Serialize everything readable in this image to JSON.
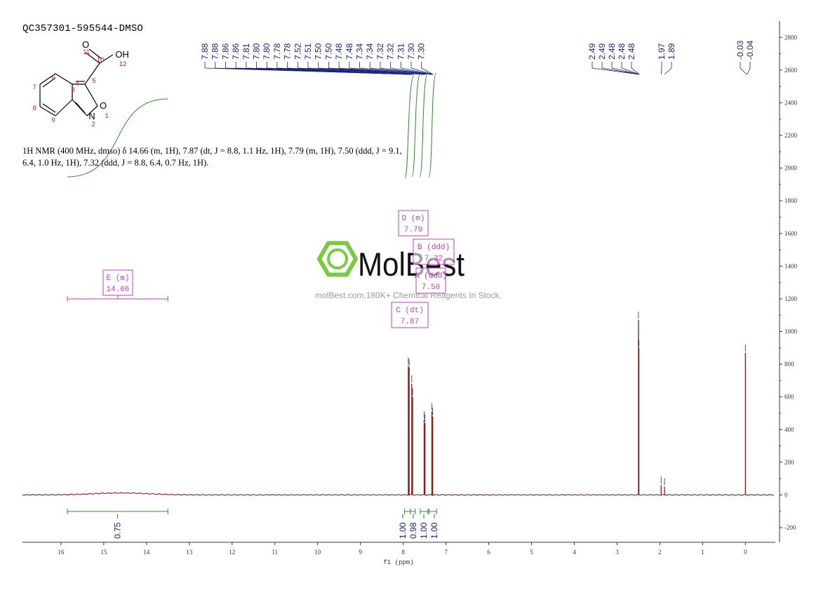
{
  "sample_id": "QC357301-595544-DMSO",
  "hnmr_text": "1H NMR (400 MHz, dmso) δ 14.66 (m, 1H), 7.87 (dt, J = 8.8, 1.1 Hz, 1H), 7.79 (m, 1H), 7.50 (ddd, J = 9.1, 6.4, 1.0 Hz, 1H), 7.32 (ddd, J = 8.8, 6.4, 0.7 Hz, 1H).",
  "structure": {
    "atom_labels": [
      "O",
      "OH",
      "O",
      "N"
    ],
    "atom_numbers": [
      "1",
      "2",
      "3",
      "4",
      "5",
      "6",
      "7",
      "8",
      "9",
      "10",
      "11",
      "12"
    ]
  },
  "watermark": {
    "brand": "MolBest",
    "url": "molBest.com,180K+ Chemical Reagents In Stock."
  },
  "colors": {
    "spectrum": "#8b1a1a",
    "peak_labels": "#1a237e",
    "integral": "#2e8b2e",
    "multiplet_box": "#c040c0",
    "atom_numbers": "#cc2222"
  },
  "chart_data": {
    "type": "line",
    "xlabel": "f1 (ppm)",
    "x_reversed": true,
    "xlim": [
      16.9,
      -0.7
    ],
    "ylim": [
      -290,
      2900
    ],
    "x_ticks": [
      16,
      15,
      14,
      13,
      12,
      11,
      10,
      9,
      8,
      7,
      6,
      5,
      4,
      3,
      2,
      1,
      0
    ],
    "y_ticks": [
      2800,
      2600,
      2400,
      2200,
      2000,
      1800,
      1600,
      1400,
      1200,
      1000,
      800,
      600,
      400,
      200,
      0,
      -200
    ],
    "peaks": [
      {
        "ppm": 7.88,
        "height": 790
      },
      {
        "ppm": 7.86,
        "height": 780
      },
      {
        "ppm": 7.8,
        "height": 680
      },
      {
        "ppm": 7.78,
        "height": 600
      },
      {
        "ppm": 7.51,
        "height": 460
      },
      {
        "ppm": 7.49,
        "height": 440
      },
      {
        "ppm": 7.33,
        "height": 510
      },
      {
        "ppm": 7.31,
        "height": 480
      },
      {
        "ppm": 2.5,
        "height": 1070
      },
      {
        "ppm": 2.49,
        "height": 900
      },
      {
        "ppm": 1.97,
        "height": 60
      },
      {
        "ppm": 1.89,
        "height": 50
      },
      {
        "ppm": 0.0,
        "height": 870
      }
    ],
    "broad_peak": {
      "ppm": 14.6,
      "height": 12,
      "width": 0.9
    },
    "peak_labels_aromatic": [
      "7.88",
      "7.88",
      "7.86",
      "7.86",
      "7.81",
      "7.80",
      "7.80",
      "7.78",
      "7.78",
      "7.52",
      "7.51",
      "7.50",
      "7.50",
      "7.48",
      "7.48",
      "7.34",
      "7.34",
      "7.32",
      "7.32",
      "7.31",
      "7.30",
      "7.30"
    ],
    "peak_labels_aromatic_targets": [
      7.88,
      7.88,
      7.86,
      7.86,
      7.81,
      7.8,
      7.8,
      7.78,
      7.78,
      7.52,
      7.51,
      7.5,
      7.5,
      7.48,
      7.48,
      7.34,
      7.34,
      7.32,
      7.32,
      7.31,
      7.3,
      7.3
    ],
    "peak_labels_solvent": [
      "2.49",
      "2.49",
      "2.48",
      "2.48",
      "2.48"
    ],
    "peak_labels_solvent_targets": [
      2.49,
      2.49,
      2.48,
      2.48,
      2.48
    ],
    "peak_labels_minor": [
      "1.97",
      "1.89"
    ],
    "peak_labels_minor_targets": [
      1.97,
      1.89
    ],
    "peak_labels_tms": [
      "-0.03",
      "-0.04"
    ],
    "peak_labels_tms_targets": [
      -0.03,
      -0.04
    ],
    "integrals": [
      {
        "from": 15.85,
        "to": 13.5,
        "value": "0.75"
      },
      {
        "from": 7.97,
        "to": 7.83,
        "value": "1.00"
      },
      {
        "from": 7.83,
        "to": 7.72,
        "value": "0.98"
      },
      {
        "from": 7.6,
        "to": 7.42,
        "value": "1.00"
      },
      {
        "from": 7.4,
        "to": 7.22,
        "value": "1.00"
      }
    ],
    "multiplets": [
      {
        "letter": "E",
        "type": "m",
        "shift": "14.66",
        "from": 15.85,
        "to": 13.5
      },
      {
        "letter": "D",
        "type": "m",
        "shift": "7.79"
      },
      {
        "letter": "B",
        "type": "ddd",
        "shift": "7.32"
      },
      {
        "letter": "A",
        "type": "ddd",
        "shift": "7.50"
      },
      {
        "letter": "C",
        "type": "dt",
        "shift": "7.87"
      }
    ]
  }
}
